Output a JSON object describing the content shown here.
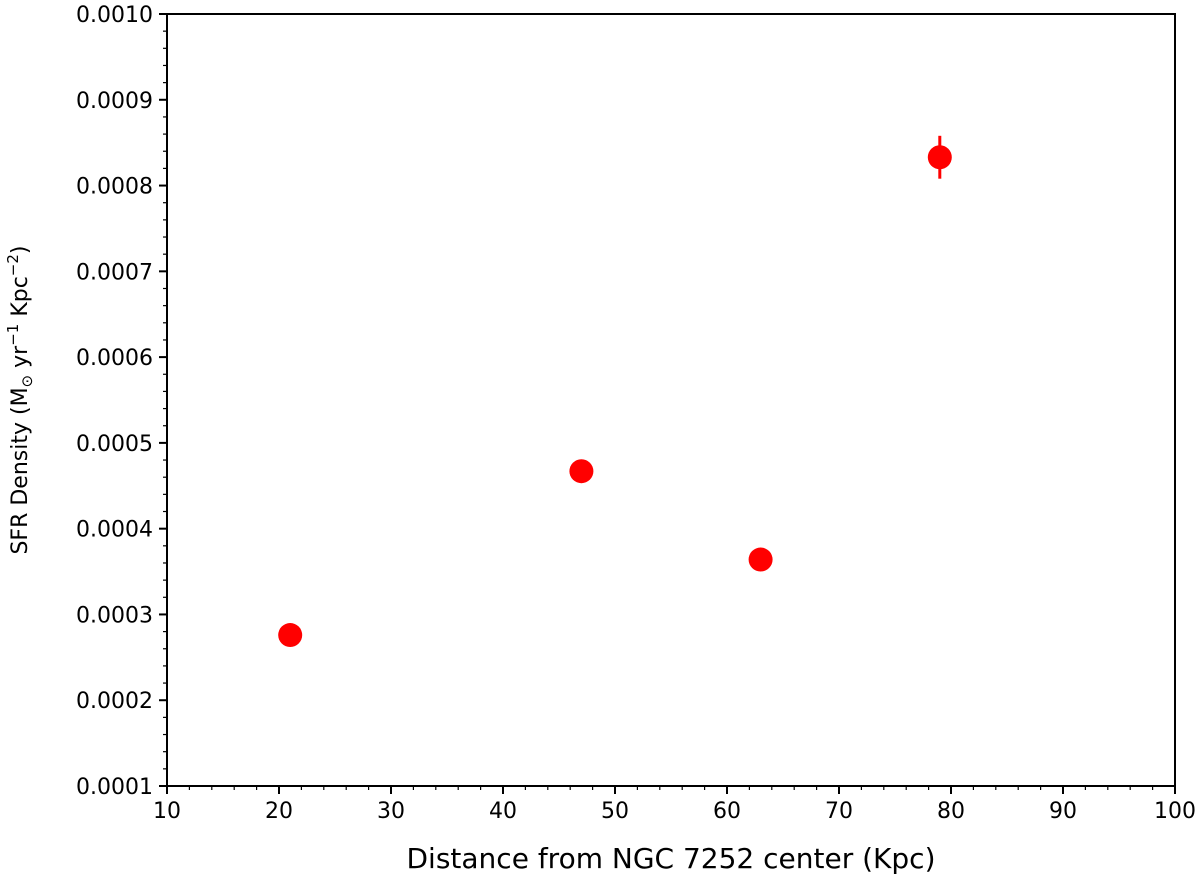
{
  "chart_data": {
    "type": "scatter",
    "title": "",
    "xlabel": "Distance from NGC 7252 center (Kpc)",
    "ylabel": {
      "prefix": "SFR Density (M",
      "sun_symbol": "⊙",
      "mid1": " yr",
      "exp1": "−1",
      "mid2": " Kpc",
      "exp2": "−2",
      "suffix": ")"
    },
    "xlim": [
      10,
      100
    ],
    "ylim": [
      0.0001,
      0.001
    ],
    "x_ticks": [
      "10",
      "20",
      "30",
      "40",
      "50",
      "60",
      "70",
      "80",
      "90",
      "100"
    ],
    "y_ticks": [
      "0.0001",
      "0.0002",
      "0.0003",
      "0.0004",
      "0.0005",
      "0.0006",
      "0.0007",
      "0.0008",
      "0.0009",
      "0.0010"
    ],
    "grid": false,
    "marker_color": "#ff0000",
    "points": [
      {
        "x": 21,
        "y": 0.000276,
        "yerr": 4e-06
      },
      {
        "x": 47,
        "y": 0.000467,
        "yerr": 4e-06
      },
      {
        "x": 63,
        "y": 0.000364,
        "yerr": 4e-06
      },
      {
        "x": 79,
        "y": 0.000833,
        "yerr": 2.5e-05
      }
    ]
  }
}
